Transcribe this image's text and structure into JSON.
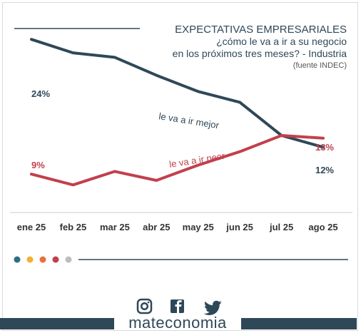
{
  "header": {
    "title": "EXPECTATIVAS EMPRESARIALES",
    "subtitle_1": "¿cómo le va a ir a su negocio",
    "subtitle_2": "en los próximos tres meses? - Industria",
    "source": "(fuente INDEC)"
  },
  "chart_data": {
    "type": "line",
    "categories": [
      "ene 25",
      "feb 25",
      "mar 25",
      "abr 25",
      "may 25",
      "jun 25",
      "jul 25",
      "ago 25"
    ],
    "series": [
      {
        "name": "le va a ir mejor",
        "values": [
          24,
          22.5,
          22,
          20,
          18.2,
          17,
          13.3,
          12
        ],
        "start_label": "24%",
        "end_label": "12%",
        "color": "#2f4858"
      },
      {
        "name": "le va a ir peor",
        "values": [
          9,
          7.8,
          9.3,
          8.3,
          10,
          11.5,
          13.3,
          13
        ],
        "start_label": "9%",
        "end_label": "13%",
        "color": "#c1404c"
      }
    ],
    "ylim": [
      6,
      26
    ],
    "grid": false,
    "axis_line": true
  },
  "legend_dots": [
    "#2f6e7e",
    "#f2b134",
    "#e8703c",
    "#c1404c",
    "#bdbdbd"
  ],
  "footer": {
    "brand": "mateconomia",
    "icons": [
      "instagram-icon",
      "facebook-icon",
      "twitter-icon"
    ]
  },
  "colors": {
    "dark": "#2f4858",
    "red": "#c1404c"
  }
}
